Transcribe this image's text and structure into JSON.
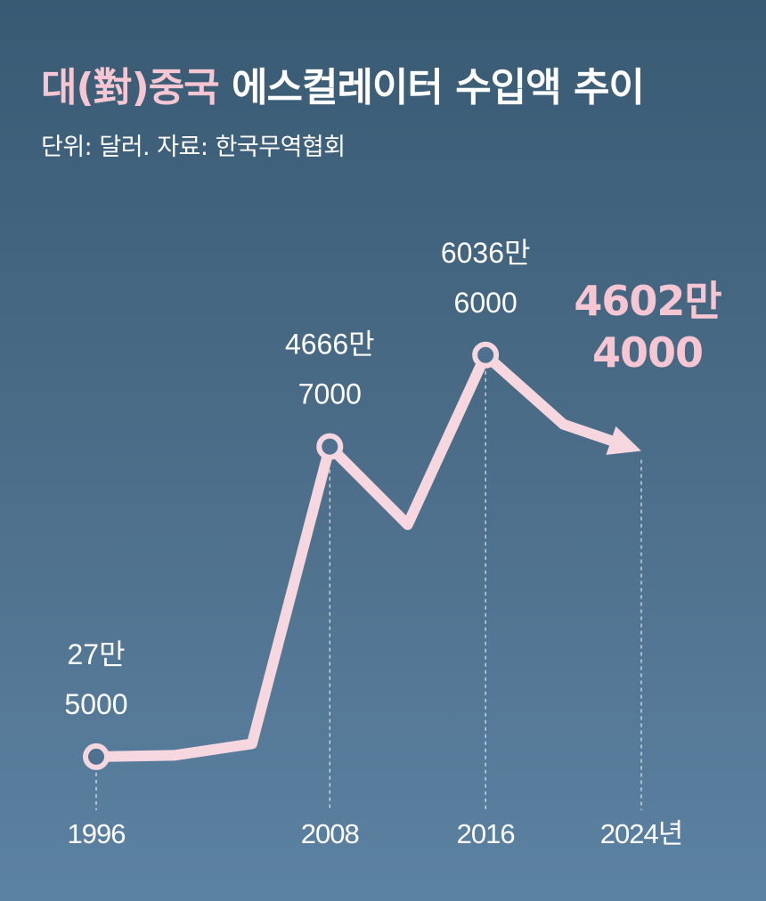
{
  "header": {
    "title_accent": "대(對)중국",
    "title_rest": "에스컬레이터 수입액 추이",
    "subtitle": "단위: 달러. 자료: 한국무역협회"
  },
  "colors": {
    "line": "#f6d7df",
    "highlight": "#f6c6d3",
    "text": "#ffffff",
    "guide": "#e6eef4"
  },
  "chart_data": {
    "type": "line",
    "title": "대(對)중국 에스컬레이터 수입액 추이",
    "subtitle": "단위: 달러. 자료: 한국무역협회",
    "x_unit": "년",
    "x_ticks": [
      1996,
      2008,
      2016,
      2024
    ],
    "x_tick_labels": [
      "1996",
      "2008",
      "2016",
      "2024년"
    ],
    "series": [
      {
        "x": [
          1996,
          2000,
          2004,
          2008,
          2012,
          2016,
          2020,
          2024
        ],
        "y": [
          275000,
          480000,
          2200000,
          46667000,
          35000000,
          60366000,
          50000000,
          46024000
        ]
      }
    ],
    "annotations": [
      {
        "x": 1996,
        "y": 275000,
        "line1": "27만",
        "line2": "5000"
      },
      {
        "x": 2008,
        "y": 46667000,
        "line1": "4666만",
        "line2": "7000"
      },
      {
        "x": 2016,
        "y": 60366000,
        "line1": "6036만",
        "line2": "6000"
      },
      {
        "x": 2024,
        "y": 46024000,
        "line1": "4602만",
        "line2": "4000",
        "highlight": true
      }
    ],
    "ylim": [
      0,
      65000000
    ],
    "grid": false
  }
}
